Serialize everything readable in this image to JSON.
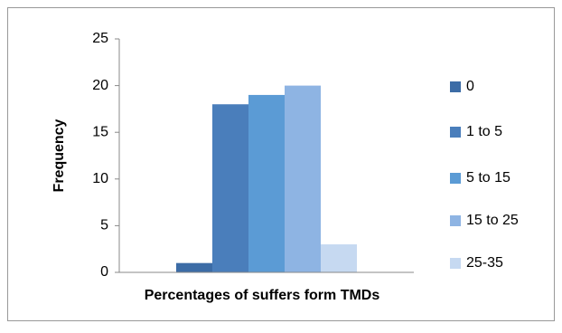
{
  "chart_data": {
    "type": "bar",
    "x_label": "Percentages of suffers form TMDs",
    "y_label": "Frequency",
    "categories": [
      null
    ],
    "series": [
      {
        "name": "0",
        "color": "#3c6ca6",
        "values": [
          1
        ]
      },
      {
        "name": "1 to 5",
        "color": "#4a7ebb",
        "values": [
          18
        ]
      },
      {
        "name": "5 to 15",
        "color": "#5b9bd5",
        "values": [
          19
        ]
      },
      {
        "name": "15 to 25",
        "color": "#8eb4e3",
        "values": [
          20
        ]
      },
      {
        "name": "25-35",
        "color": "#c6d9f1",
        "values": [
          3
        ]
      }
    ],
    "ylim": [
      0,
      25
    ],
    "yticks": [
      0,
      5,
      10,
      15,
      20,
      25
    ],
    "grid": false,
    "legend": "right"
  }
}
